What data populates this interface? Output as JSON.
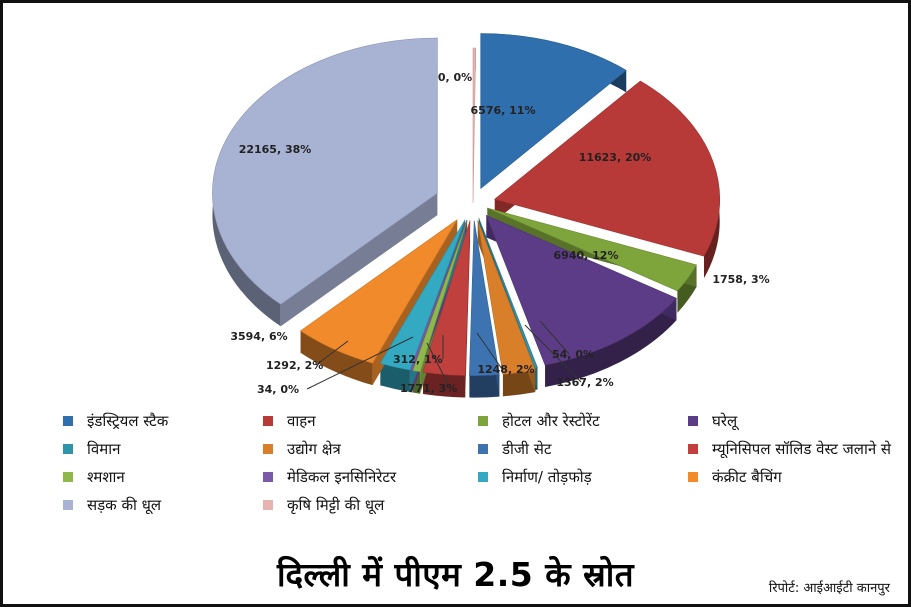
{
  "title": "दिल्ली में पीएम 2.5 के स्रोत",
  "credit": "रिपोर्ट: आईआईटी कानपुर",
  "chart_data": {
    "type": "pie",
    "title": "दिल्ली में पीएम 2.5 के स्रोत",
    "slices": [
      {
        "name": "इंडस्ट्रियल स्टैक",
        "value": 6576,
        "percent": 11,
        "label": "6576, 11%",
        "color": "#2f6fad"
      },
      {
        "name": "वाहन",
        "value": 11623,
        "percent": 20,
        "label": "11623, 20%",
        "color": "#b73a38"
      },
      {
        "name": "होटल और रेस्टोरेंट",
        "value": 1758,
        "percent": 3,
        "label": "1758, 3%",
        "color": "#7ea53b"
      },
      {
        "name": "घरेलू",
        "value": 6940,
        "percent": 12,
        "label": "6940, 12%",
        "color": "#5c3c87"
      },
      {
        "name": "विमान",
        "value": 54,
        "percent": 0,
        "label": "54, 0%",
        "color": "#2f93a9"
      },
      {
        "name": "उद्योग क्षेत्र",
        "value": 1367,
        "percent": 2,
        "label": "1367, 2%",
        "color": "#d97f2a"
      },
      {
        "name": "डीजी सेट",
        "value": 1248,
        "percent": 2,
        "label": "1248, 2%",
        "color": "#3e73b2"
      },
      {
        "name": "म्यूनिसिपल सॉलिड वेस्ट जलाने से",
        "value": 1771,
        "percent": 3,
        "label": "1771, 3%",
        "color": "#c0403e"
      },
      {
        "name": "श्मशान",
        "value": 312,
        "percent": 1,
        "label": "312, 1%",
        "color": "#8eb84a"
      },
      {
        "name": "मेडिकल इनसिनिरेटर",
        "value": 34,
        "percent": 0,
        "label": "34, 0%",
        "color": "#7a5aa8"
      },
      {
        "name": "निर्माण/ तोड़फोड़",
        "value": 1292,
        "percent": 2,
        "label": "1292, 2%",
        "color": "#33a9c2"
      },
      {
        "name": "कंक्रीट बैचिंग",
        "value": 3594,
        "percent": 6,
        "label": "3594, 6%",
        "color": "#f08a2b"
      },
      {
        "name": "सड़क की धूल",
        "value": 22165,
        "percent": 38,
        "label": "22165, 38%",
        "color": "#a8b3d4"
      },
      {
        "name": "कृषि मिट्टी की धूल",
        "value": 0,
        "percent": 0,
        "label": "0, 0%",
        "color": "#e7b3b0"
      }
    ]
  },
  "legend": [
    {
      "label": "इंडस्ट्रियल स्टैक",
      "color": "#2f6fad"
    },
    {
      "label": "वाहन",
      "color": "#b73a38"
    },
    {
      "label": "होटल और रेस्टोरेंट",
      "color": "#7ea53b"
    },
    {
      "label": "घरेलू",
      "color": "#5c3c87"
    },
    {
      "label": "विमान",
      "color": "#2f93a9"
    },
    {
      "label": "उद्योग क्षेत्र",
      "color": "#d97f2a"
    },
    {
      "label": "डीजी सेट",
      "color": "#3e73b2"
    },
    {
      "label": "म्यूनिसिपल सॉलिड वेस्ट जलाने से",
      "color": "#c0403e"
    },
    {
      "label": "श्मशान",
      "color": "#8eb84a"
    },
    {
      "label": "मेडिकल इनसिनिरेटर",
      "color": "#7a5aa8"
    },
    {
      "label": "निर्माण/ तोड़फोड़",
      "color": "#33a9c2"
    },
    {
      "label": "कंक्रीट बैचिंग",
      "color": "#f08a2b"
    },
    {
      "label": "सड़क की धूल",
      "color": "#a8b3d4"
    },
    {
      "label": "कृषि मिट्टी की धूल",
      "color": "#e7b3b0"
    }
  ]
}
